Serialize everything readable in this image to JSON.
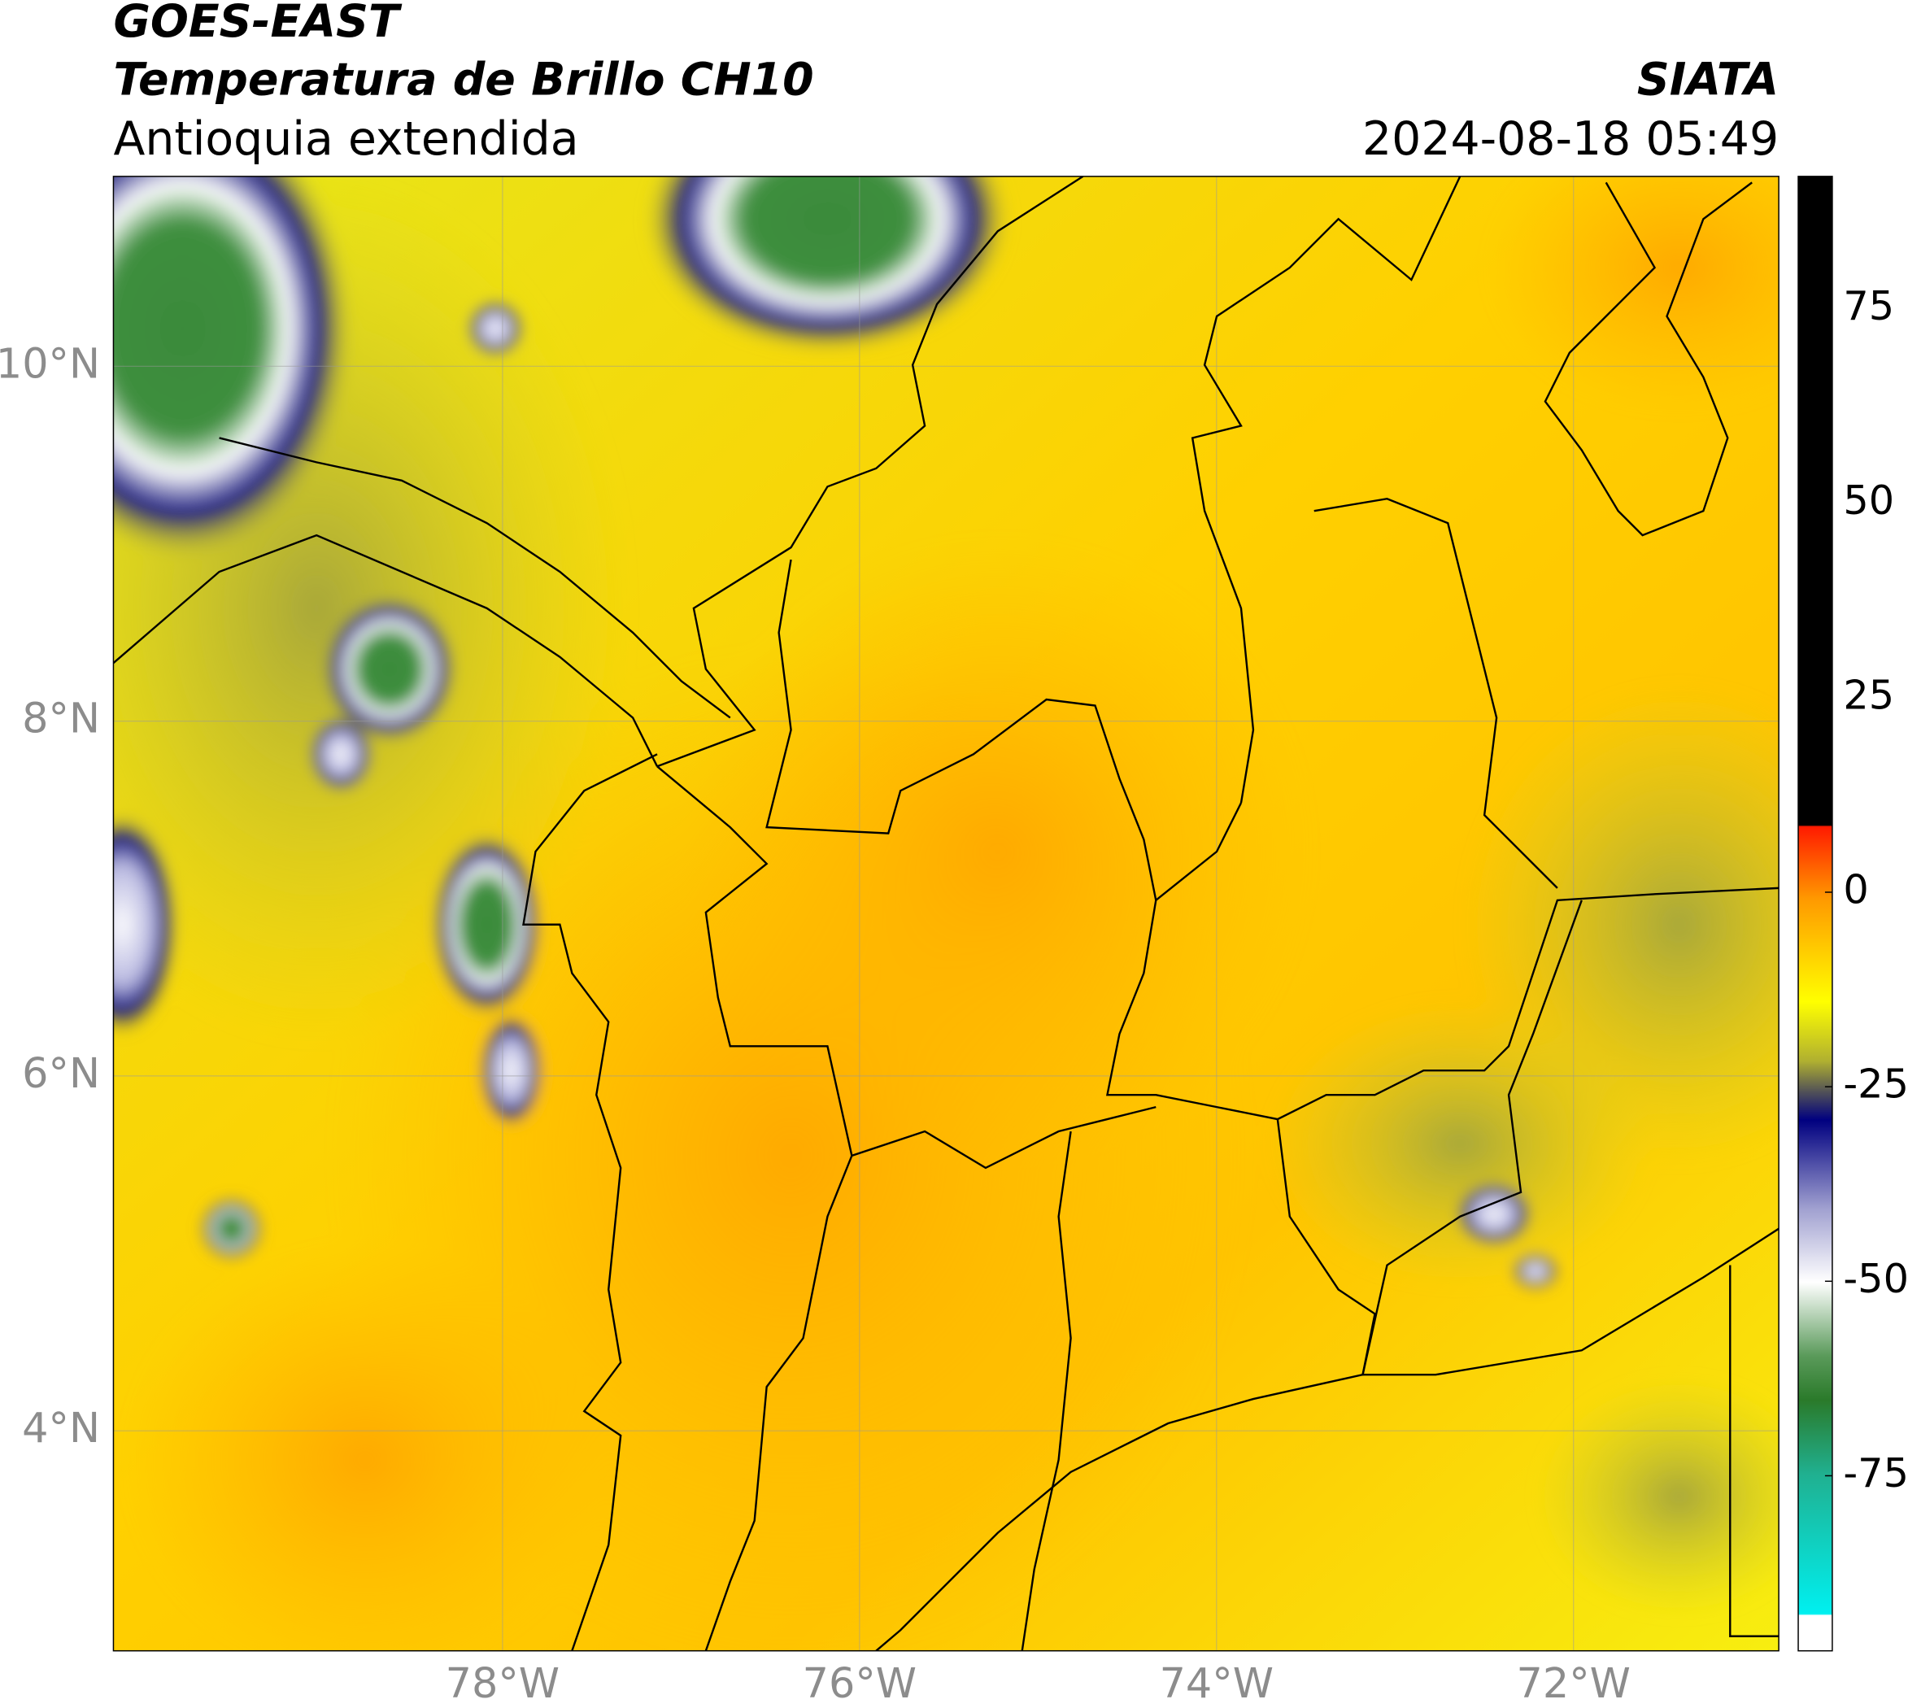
{
  "header": {
    "source": "GOES-EAST",
    "product": "Temperatura de Brillo CH10",
    "region": "Antioquia extendida",
    "agency": "SIATA",
    "timestamp": "2024-08-18 05:49"
  },
  "map": {
    "type": "map",
    "xlim": [
      -80.18,
      -70.85
    ],
    "ylim": [
      2.76,
      11.07
    ],
    "xticks": [
      {
        "value": -78,
        "label": "78°W"
      },
      {
        "value": -76,
        "label": "76°W"
      },
      {
        "value": -74,
        "label": "74°W"
      },
      {
        "value": -72,
        "label": "72°W"
      }
    ],
    "yticks": [
      {
        "value": 4,
        "label": "4°N"
      },
      {
        "value": 6,
        "label": "6°N"
      },
      {
        "value": 8,
        "label": "8°N"
      },
      {
        "value": 10,
        "label": "10°N"
      }
    ],
    "grid": true,
    "colorbar": {
      "lim": [
        -97.5,
        92
      ],
      "ticks": [
        -75,
        -50,
        -25,
        0,
        25,
        50,
        75
      ]
    }
  }
}
